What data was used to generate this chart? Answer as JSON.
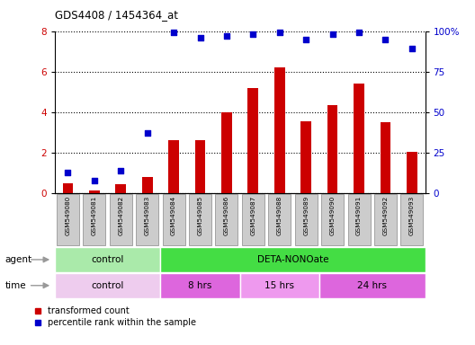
{
  "title": "GDS4408 / 1454364_at",
  "samples": [
    "GSM549080",
    "GSM549081",
    "GSM549082",
    "GSM549083",
    "GSM549084",
    "GSM549085",
    "GSM549086",
    "GSM549087",
    "GSM549088",
    "GSM549089",
    "GSM549090",
    "GSM549091",
    "GSM549092",
    "GSM549093"
  ],
  "transformed_count": [
    0.5,
    0.15,
    0.45,
    0.8,
    2.6,
    2.6,
    4.0,
    5.2,
    6.2,
    3.55,
    4.35,
    5.4,
    3.5,
    2.05
  ],
  "percentile_rank": [
    13,
    8,
    14,
    37,
    99,
    96,
    97,
    98,
    99,
    95,
    98,
    99,
    95,
    89
  ],
  "bar_color": "#cc0000",
  "dot_color": "#0000cc",
  "ylim_left": [
    0,
    8
  ],
  "ylim_right": [
    0,
    100
  ],
  "yticks_left": [
    0,
    2,
    4,
    6,
    8
  ],
  "yticks_right": [
    0,
    25,
    50,
    75,
    100
  ],
  "ytick_labels_right": [
    "0",
    "25",
    "50",
    "75",
    "100%"
  ],
  "tick_label_bg": "#cccccc",
  "agent_groups": [
    {
      "label": "control",
      "start": 0,
      "end": 4,
      "color": "#aaeaaa"
    },
    {
      "label": "DETA-NONOate",
      "start": 4,
      "end": 14,
      "color": "#44dd44"
    }
  ],
  "time_groups": [
    {
      "label": "control",
      "start": 0,
      "end": 4,
      "color": "#eeccee"
    },
    {
      "label": "8 hrs",
      "start": 4,
      "end": 7,
      "color": "#dd66dd"
    },
    {
      "label": "15 hrs",
      "start": 7,
      "end": 10,
      "color": "#ee99ee"
    },
    {
      "label": "24 hrs",
      "start": 10,
      "end": 14,
      "color": "#dd66dd"
    }
  ],
  "legend_items": [
    {
      "label": "transformed count",
      "color": "#cc0000",
      "marker": "s"
    },
    {
      "label": "percentile rank within the sample",
      "color": "#0000cc",
      "marker": "s"
    }
  ],
  "arrow_color": "#999999"
}
